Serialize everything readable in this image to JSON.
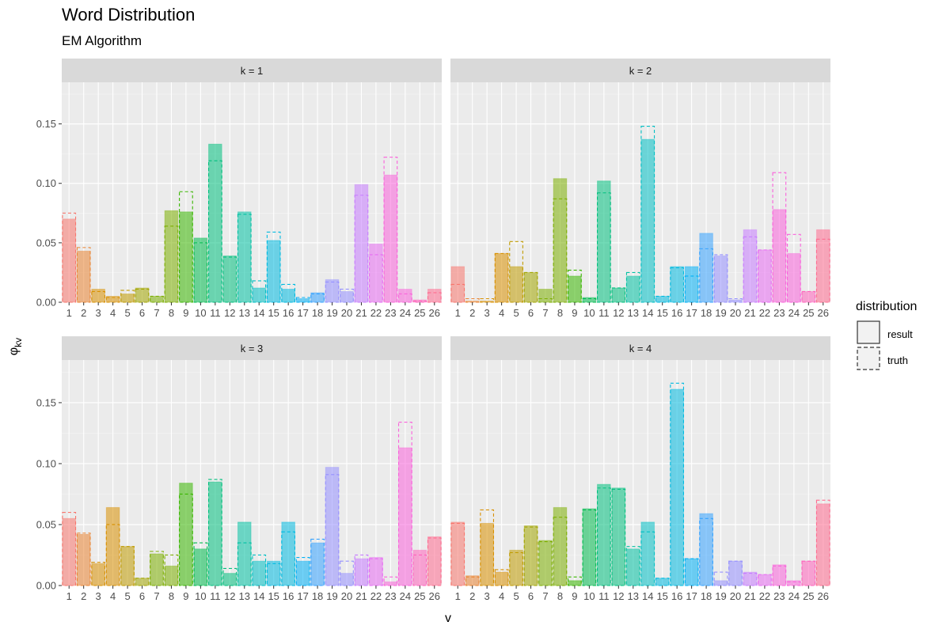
{
  "title": "Word Distribution",
  "subtitle": "EM Algorithm",
  "chart_data": {
    "type": "bar",
    "title": "Word Distribution",
    "subtitle": "EM Algorithm",
    "xlabel": "v",
    "ylabel": "φ",
    "ylabel_sub": "kv",
    "ylim": [
      0,
      0.185
    ],
    "yticks": [
      0.0,
      0.05,
      0.1,
      0.15
    ],
    "ytick_labels": [
      "0.00",
      "0.05",
      "0.10",
      "0.15"
    ],
    "grid": true,
    "categories": [
      "1",
      "2",
      "3",
      "4",
      "5",
      "6",
      "7",
      "8",
      "9",
      "10",
      "11",
      "12",
      "13",
      "14",
      "15",
      "16",
      "17",
      "18",
      "19",
      "20",
      "21",
      "22",
      "23",
      "24",
      "25",
      "26"
    ],
    "legend": {
      "title": "distribution",
      "placement": "right",
      "entries": [
        {
          "label": "result",
          "linetype": "solid"
        },
        {
          "label": "truth",
          "linetype": "dashed"
        }
      ]
    },
    "panels": [
      {
        "label": "k = 1",
        "result": [
          0.07,
          0.043,
          0.011,
          0.005,
          0.007,
          0.012,
          0.005,
          0.077,
          0.076,
          0.054,
          0.133,
          0.039,
          0.076,
          0.012,
          0.052,
          0.011,
          0.003,
          0.008,
          0.019,
          0.009,
          0.099,
          0.049,
          0.107,
          0.011,
          0.002,
          0.011
        ],
        "truth": [
          0.075,
          0.046,
          0.009,
          0.004,
          0.01,
          0.011,
          0.005,
          0.064,
          0.093,
          0.05,
          0.119,
          0.038,
          0.074,
          0.018,
          0.059,
          0.015,
          0.004,
          0.007,
          0.017,
          0.011,
          0.09,
          0.04,
          0.122,
          0.007,
          0.001,
          0.008
        ]
      },
      {
        "label": "k = 2",
        "result": [
          0.03,
          0.001,
          0.001,
          0.041,
          0.03,
          0.025,
          0.011,
          0.104,
          0.022,
          0.004,
          0.102,
          0.012,
          0.022,
          0.137,
          0.005,
          0.03,
          0.03,
          0.058,
          0.039,
          0.002,
          0.061,
          0.044,
          0.078,
          0.041,
          0.009,
          0.061
        ],
        "truth": [
          0.015,
          0.003,
          0.003,
          0.041,
          0.051,
          0.025,
          0.003,
          0.087,
          0.027,
          0.003,
          0.092,
          0.012,
          0.025,
          0.148,
          0.005,
          0.029,
          0.022,
          0.045,
          0.04,
          0.003,
          0.055,
          0.044,
          0.109,
          0.057,
          0.009,
          0.053
        ]
      },
      {
        "label": "k = 3",
        "result": [
          0.055,
          0.042,
          0.018,
          0.064,
          0.032,
          0.006,
          0.026,
          0.016,
          0.084,
          0.03,
          0.085,
          0.01,
          0.052,
          0.02,
          0.02,
          0.052,
          0.02,
          0.035,
          0.097,
          0.01,
          0.022,
          0.023,
          0.003,
          0.113,
          0.029,
          0.04
        ],
        "truth": [
          0.06,
          0.043,
          0.019,
          0.05,
          0.032,
          0.006,
          0.028,
          0.025,
          0.075,
          0.035,
          0.087,
          0.014,
          0.035,
          0.025,
          0.018,
          0.044,
          0.023,
          0.038,
          0.091,
          0.02,
          0.025,
          0.022,
          0.007,
          0.134,
          0.025,
          0.039
        ]
      },
      {
        "label": "k = 4",
        "result": [
          0.052,
          0.008,
          0.051,
          0.011,
          0.029,
          0.049,
          0.037,
          0.064,
          0.004,
          0.063,
          0.083,
          0.08,
          0.03,
          0.052,
          0.006,
          0.161,
          0.022,
          0.059,
          0.004,
          0.02,
          0.011,
          0.009,
          0.017,
          0.004,
          0.02,
          0.067
        ],
        "truth": [
          0.051,
          0.007,
          0.062,
          0.013,
          0.027,
          0.048,
          0.036,
          0.056,
          0.007,
          0.062,
          0.08,
          0.079,
          0.032,
          0.044,
          0.006,
          0.166,
          0.022,
          0.055,
          0.011,
          0.02,
          0.01,
          0.009,
          0.016,
          0.003,
          0.02,
          0.07
        ]
      }
    ],
    "colors": [
      "#F8766D",
      "#EA8331",
      "#D89000",
      "#C09B00",
      "#A3A500",
      "#7CAE00",
      "#39B600",
      "#00BB4E",
      "#00BF7D",
      "#00C1A3",
      "#00BFC4",
      "#00BAE0",
      "#00B0F6",
      "#35A2FF",
      "#9590FF",
      "#C77CFF",
      "#E76BF3",
      "#FA62DB",
      "#FF62BC",
      "#FF6C90"
    ],
    "panel_background": "#EBEBEB",
    "strip_background": "#D9D9D9"
  }
}
